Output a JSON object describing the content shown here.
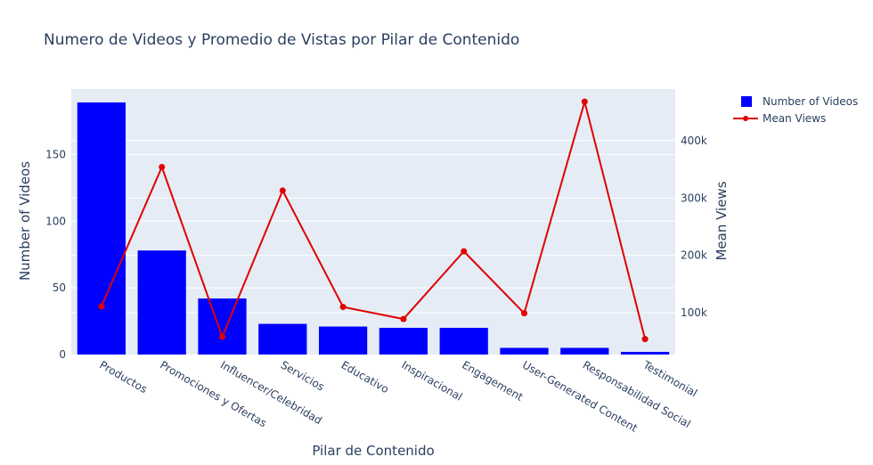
{
  "chart_data": {
    "type": "bar",
    "title": "Numero de Videos y Promedio de Vistas por Pilar de Contenido",
    "xlabel": "Pilar de Contenido",
    "ylabel": "Number of Videos",
    "y2label": "Mean Views",
    "categories": [
      "Productos",
      "Promociones y Ofertas",
      "Influencer/Celebridad",
      "Servicios",
      "Educativo",
      "Inspiracional",
      "Engagement",
      "User-Generated Content",
      "Responsabilidad Social",
      "Testimonial"
    ],
    "series": [
      {
        "name": "Number of Videos",
        "type": "bar",
        "axis": "y",
        "color": "#0000ff",
        "values": [
          189,
          78,
          42,
          23,
          21,
          20,
          20,
          5,
          5,
          2
        ]
      },
      {
        "name": "Mean Views",
        "type": "line",
        "axis": "y2",
        "color": "#e00000",
        "values": [
          111000,
          354000,
          58000,
          313000,
          110000,
          89000,
          207000,
          99000,
          468000,
          54000
        ]
      }
    ],
    "y_ticks": [
      0,
      50,
      100,
      150
    ],
    "y2_ticks": [
      100000,
      200000,
      300000,
      400000
    ],
    "y2_tick_labels": [
      "100k",
      "200k",
      "300k",
      "400k"
    ],
    "ylim": [
      0,
      199
    ],
    "y2lim": [
      27000,
      490000
    ],
    "grid": true,
    "legend_position": "top-right",
    "plot_bgcolor": "#e5ecf6",
    "text_color": "#2a3f5f"
  }
}
